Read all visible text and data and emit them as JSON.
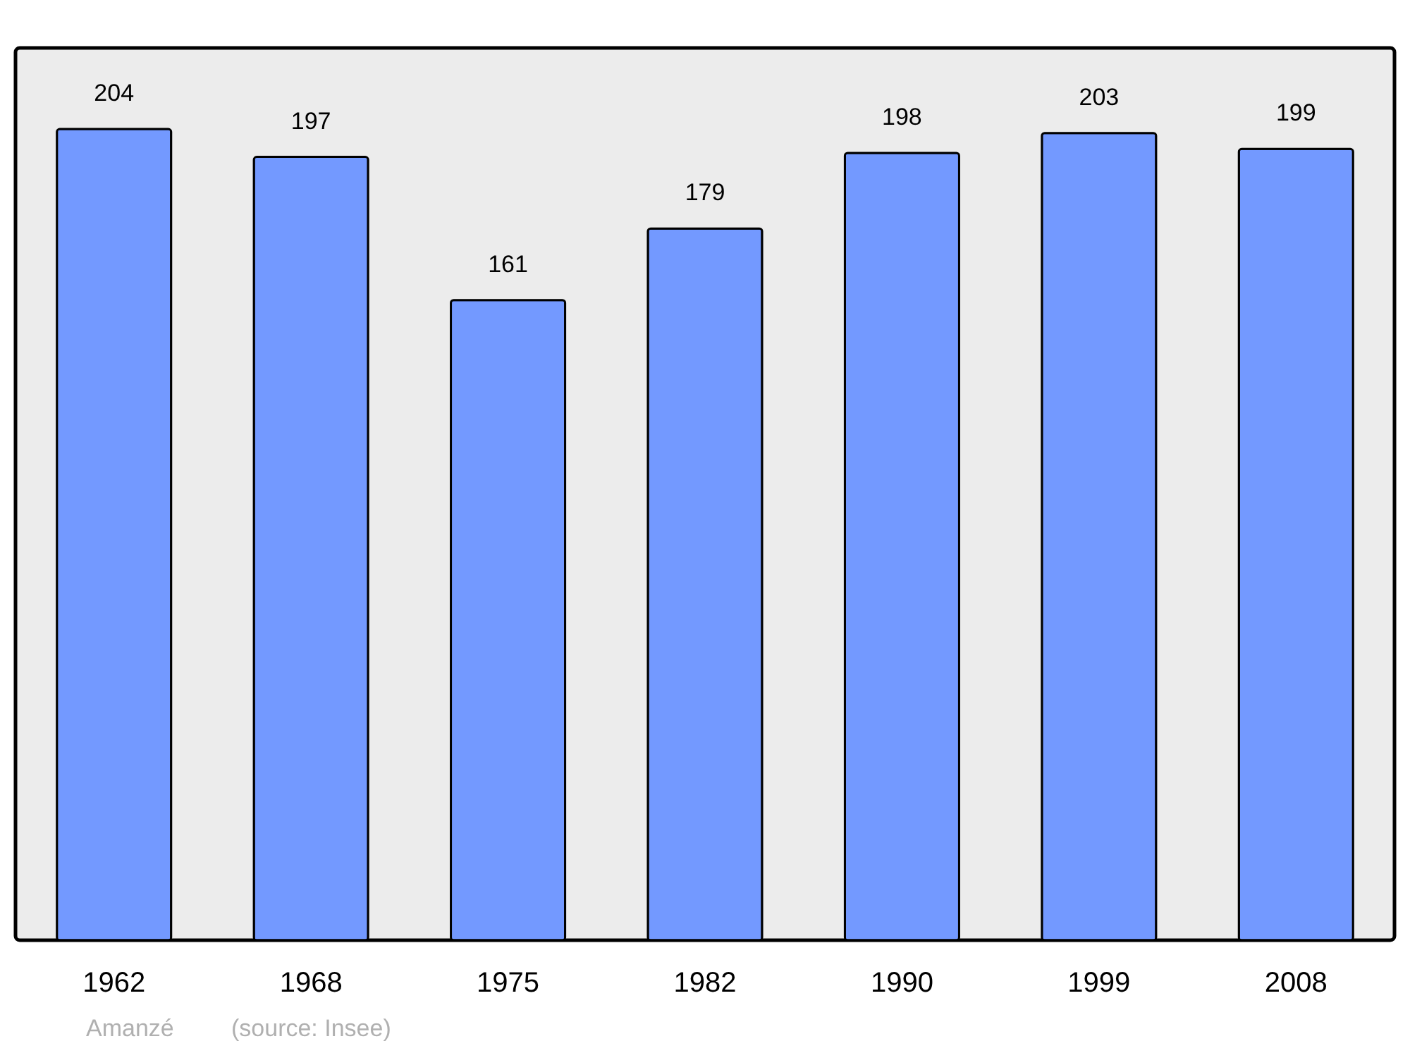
{
  "chart_data": {
    "type": "bar",
    "categories": [
      "1962",
      "1968",
      "1975",
      "1982",
      "1990",
      "1999",
      "2008"
    ],
    "values": [
      204,
      197,
      161,
      179,
      198,
      203,
      199
    ],
    "color": "#7399ff",
    "data_labels": true,
    "annotations": [
      "Amanzé",
      "(source: Insee)"
    ]
  }
}
